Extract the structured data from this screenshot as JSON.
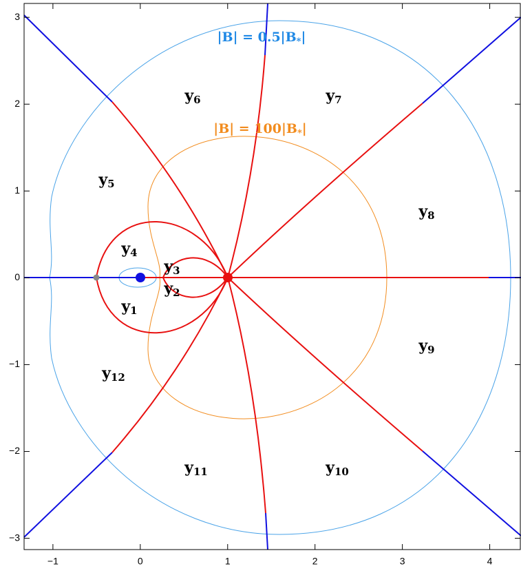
{
  "chart_data": {
    "type": "plot",
    "xlim": [
      -1.33,
      4.35
    ],
    "ylim": [
      -3.13,
      3.16
    ],
    "xticks": [
      {
        "value": -1,
        "label": "−1"
      },
      0,
      1,
      2,
      3,
      4
    ],
    "yticks": [
      {
        "value": -3,
        "label": "−3"
      },
      {
        "value": -2,
        "label": "−2"
      },
      {
        "value": -1,
        "label": "−1"
      },
      0,
      1,
      2,
      3
    ],
    "annotations": [
      {
        "text": "|B| = 0.5|B",
        "subscript": "*",
        "suffix": "|",
        "color": "#1e88e5"
      },
      {
        "text": "|B| = 100|B",
        "subscript": "*",
        "suffix": "|",
        "color": "#f28c1e"
      }
    ],
    "regions": [
      {
        "text": "y",
        "subscript": "1"
      },
      {
        "text": "y",
        "subscript": "2"
      },
      {
        "text": "y",
        "subscript": "3"
      },
      {
        "text": "y",
        "subscript": "4"
      },
      {
        "text": "y",
        "subscript": "5"
      },
      {
        "text": "y",
        "subscript": "6"
      },
      {
        "text": "y",
        "subscript": "7"
      },
      {
        "text": "y",
        "subscript": "8"
      },
      {
        "text": "y",
        "subscript": "9"
      },
      {
        "text": "y",
        "subscript": "10"
      },
      {
        "text": "y",
        "subscript": "11"
      },
      {
        "text": "y",
        "subscript": "12"
      }
    ]
  }
}
